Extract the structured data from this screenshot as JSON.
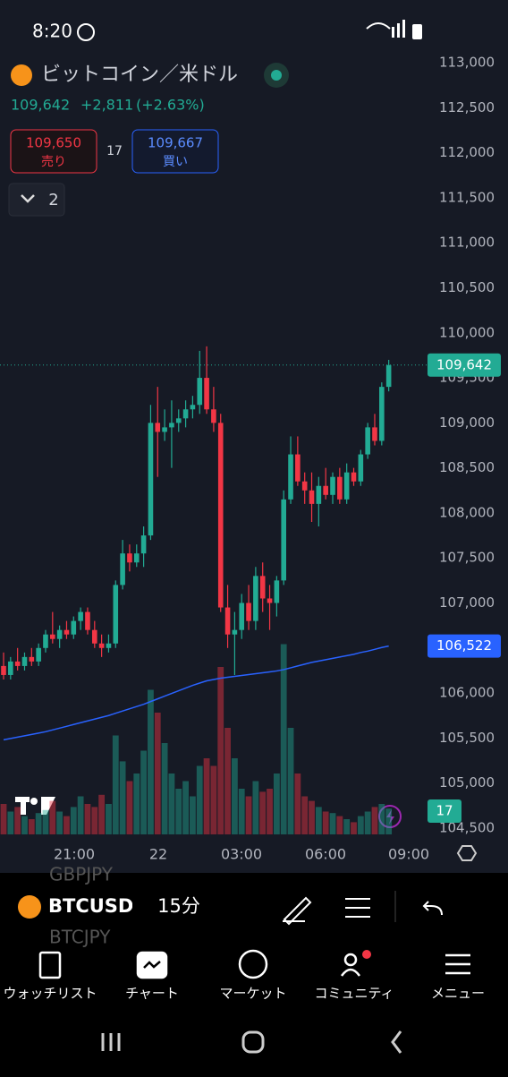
{
  "status_bar": {
    "time": "8:20"
  },
  "header": {
    "title": "ビットコイン／米ドル",
    "price": "109,642",
    "change": "+2,811",
    "change_pct": "(+2.63%)",
    "sell_price": "109,650",
    "sell_label": "売り",
    "spread": "17",
    "buy_price": "109,667",
    "buy_label": "買い",
    "indicators_count": "2"
  },
  "chart_data": {
    "type": "candlestick",
    "candles": [
      [
        106300,
        106450,
        106150,
        106200
      ],
      [
        106200,
        106400,
        106150,
        106350
      ],
      [
        106350,
        106500,
        106250,
        106300
      ],
      [
        106300,
        106450,
        106250,
        106400
      ],
      [
        106400,
        106500,
        106300,
        106350
      ],
      [
        106350,
        106550,
        106300,
        106500
      ],
      [
        106500,
        106700,
        106450,
        106650
      ],
      [
        106650,
        106900,
        106550,
        106600
      ],
      [
        106600,
        106750,
        106500,
        106700
      ],
      [
        106700,
        106800,
        106600,
        106650
      ],
      [
        106650,
        106850,
        106600,
        106800
      ],
      [
        106800,
        106950,
        106700,
        106900
      ],
      [
        106900,
        106950,
        106650,
        106700
      ],
      [
        106700,
        106800,
        106500,
        106550
      ],
      [
        106550,
        106650,
        106400,
        106500
      ],
      [
        106500,
        106650,
        106450,
        106550
      ],
      [
        106550,
        107250,
        106500,
        107200
      ],
      [
        107200,
        107700,
        107150,
        107550
      ],
      [
        107550,
        107650,
        107350,
        107450
      ],
      [
        107450,
        107650,
        107400,
        107550
      ],
      [
        107550,
        107850,
        107400,
        107750
      ],
      [
        107750,
        109200,
        107700,
        109000
      ],
      [
        109000,
        109400,
        108400,
        108900
      ],
      [
        108900,
        109150,
        108800,
        108950
      ],
      [
        108950,
        109250,
        108500,
        109000
      ],
      [
        109000,
        109150,
        108900,
        109050
      ],
      [
        109050,
        109250,
        108950,
        109150
      ],
      [
        109150,
        109300,
        109050,
        109200
      ],
      [
        109200,
        109800,
        109100,
        109500
      ],
      [
        109500,
        109850,
        109100,
        109150
      ],
      [
        109150,
        109400,
        108900,
        109000
      ],
      [
        109000,
        109100,
        106900,
        106950
      ],
      [
        106950,
        107200,
        106500,
        106650
      ],
      [
        106650,
        106900,
        106200,
        106700
      ],
      [
        106700,
        107100,
        106600,
        107000
      ],
      [
        107000,
        107200,
        106700,
        106800
      ],
      [
        106800,
        107400,
        106700,
        107300
      ],
      [
        107300,
        107450,
        106900,
        107050
      ],
      [
        107050,
        107200,
        106700,
        107000
      ],
      [
        107000,
        107300,
        106850,
        107250
      ],
      [
        107250,
        108250,
        107200,
        108150
      ],
      [
        108150,
        108850,
        108100,
        108650
      ],
      [
        108650,
        108850,
        108300,
        108350
      ],
      [
        108350,
        108450,
        108100,
        108250
      ],
      [
        108250,
        108450,
        107900,
        108100
      ],
      [
        108100,
        108400,
        107850,
        108300
      ],
      [
        108300,
        108500,
        108150,
        108200
      ],
      [
        108200,
        108450,
        108100,
        108400
      ],
      [
        108400,
        108500,
        108100,
        108150
      ],
      [
        108150,
        108550,
        108100,
        108450
      ],
      [
        108450,
        108500,
        108300,
        108350
      ],
      [
        108350,
        108700,
        108300,
        108650
      ],
      [
        108650,
        109000,
        108600,
        108950
      ],
      [
        108950,
        109100,
        108750,
        108800
      ],
      [
        108800,
        109450,
        108750,
        109400
      ],
      [
        109400,
        109700,
        109350,
        109642
      ]
    ],
    "volumes": [
      20,
      15,
      18,
      12,
      10,
      14,
      16,
      22,
      15,
      12,
      18,
      25,
      20,
      18,
      26,
      20,
      65,
      48,
      35,
      40,
      55,
      95,
      80,
      60,
      40,
      30,
      35,
      25,
      45,
      50,
      45,
      110,
      70,
      50,
      30,
      25,
      35,
      28,
      30,
      40,
      125,
      70,
      40,
      25,
      22,
      18,
      15,
      14,
      12,
      10,
      8,
      12,
      15,
      18,
      20,
      17
    ],
    "ma": [
      105480,
      105495,
      105510,
      105525,
      105540,
      105555,
      105570,
      105590,
      105610,
      105630,
      105650,
      105670,
      105690,
      105710,
      105730,
      105750,
      105775,
      105800,
      105825,
      105850,
      105875,
      105905,
      105935,
      105965,
      105995,
      106025,
      106055,
      106085,
      106110,
      106135,
      106150,
      106165,
      106175,
      106185,
      106195,
      106205,
      106215,
      106225,
      106235,
      106245,
      106260,
      106280,
      106300,
      106320,
      106340,
      106355,
      106370,
      106385,
      106400,
      106415,
      106430,
      106450,
      106465,
      106485,
      106505,
      106522
    ],
    "up_color": "#22ab94",
    "down_color": "#f23645",
    "ma_color": "#2962ff",
    "ylim": [
      104400,
      113100
    ],
    "yticks": [
      {
        "value": 113000,
        "label": "113,000"
      },
      {
        "value": 112500,
        "label": "112,500"
      },
      {
        "value": 112000,
        "label": "112,000"
      },
      {
        "value": 111500,
        "label": "111,500"
      },
      {
        "value": 111000,
        "label": "111,000"
      },
      {
        "value": 110500,
        "label": "110,500"
      },
      {
        "value": 110000,
        "label": "110,000"
      },
      {
        "value": 109500,
        "label": "109,500"
      },
      {
        "value": 109000,
        "label": "109,000"
      },
      {
        "value": 108500,
        "label": "108,500"
      },
      {
        "value": 108000,
        "label": "108,000"
      },
      {
        "value": 107500,
        "label": "107,500"
      },
      {
        "value": 107000,
        "label": "107,000"
      },
      {
        "value": 106500,
        "label": "106,500"
      },
      {
        "value": 106000,
        "label": "106,000"
      },
      {
        "value": 105500,
        "label": "105,500"
      },
      {
        "value": 105000,
        "label": "105,000"
      },
      {
        "value": 104500,
        "label": "104,500"
      }
    ],
    "last_price": {
      "value": 109642,
      "label": "109,642"
    },
    "ma_last": {
      "value": 106522,
      "label": "106,522"
    },
    "xtick_labels": [
      "21:00",
      "22",
      "03:00",
      "06:00",
      "09:00"
    ]
  },
  "toolbar": {
    "symbol": "BTCUSD",
    "interval": "15分",
    "ghost_above": "GBPJPY",
    "ghost_below": "BTCJPY"
  },
  "nav": [
    "ウォッチリスト",
    "チャート",
    "マーケット",
    "コミュニティ",
    "メニュー"
  ]
}
